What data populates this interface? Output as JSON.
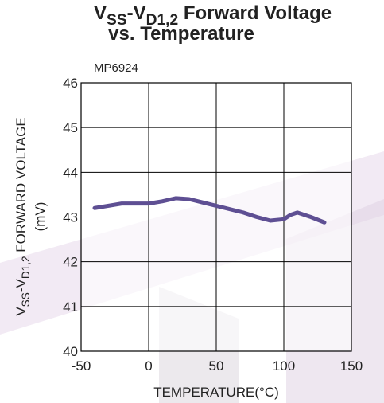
{
  "chart_data": {
    "type": "line",
    "title": [
      {
        "text": "V"
      },
      {
        "text": "SS",
        "sub": true
      },
      {
        "text": "-V"
      },
      {
        "text": "D1,2",
        "sub": true
      },
      {
        "text": " Forward Voltage"
      }
    ],
    "title_line2": "vs. Temperature",
    "subtitle": "MP6924",
    "ylabel": [
      {
        "text": "V"
      },
      {
        "text": "SS",
        "sub": true
      },
      {
        "text": "-V"
      },
      {
        "text": "D1,2",
        "sub": true
      },
      {
        "text": " FORWARD VOLTAGE"
      }
    ],
    "ylabel_line2": "(mV)",
    "xlabel": "TEMPERATURE(°C)",
    "xlim": [
      -50,
      150
    ],
    "xticks": [
      -50,
      0,
      50,
      100,
      150
    ],
    "ylim": [
      40,
      46
    ],
    "yticks": [
      40,
      41,
      42,
      43,
      44,
      45,
      46
    ],
    "grid": true,
    "series": [
      {
        "color": "#5e4f93",
        "x": [
          -40,
          -20,
          0,
          10,
          20,
          30,
          50,
          70,
          80,
          90,
          100,
          105,
          110,
          120,
          130
        ],
        "values": [
          43.2,
          43.3,
          43.3,
          43.35,
          43.42,
          43.4,
          43.25,
          43.1,
          43.0,
          42.92,
          42.95,
          43.05,
          43.1,
          43.0,
          42.88
        ]
      }
    ]
  }
}
